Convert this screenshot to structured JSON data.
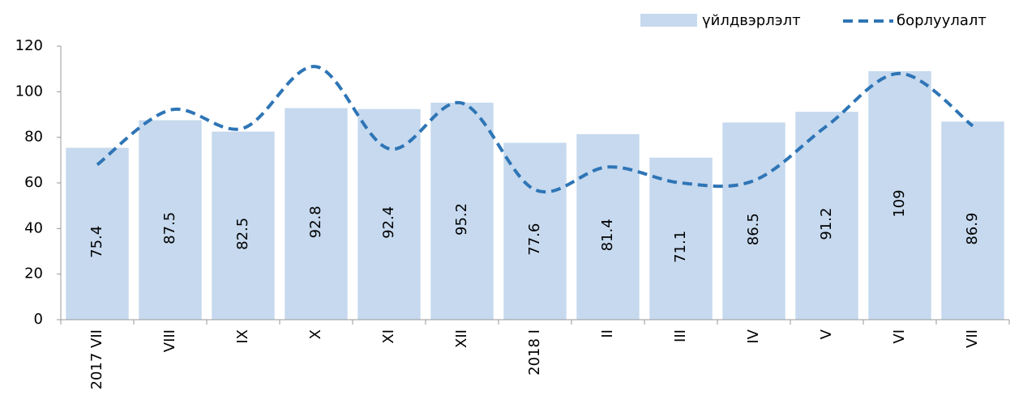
{
  "chart_data": {
    "type": "bar_line",
    "categories": [
      "2017 VII",
      "VIII",
      "IX",
      "X",
      "XI",
      "XII",
      "2018 I",
      "II",
      "III",
      "IV",
      "V",
      "VI",
      "VII"
    ],
    "series": [
      {
        "name": "үйлдвэрлэлт",
        "type": "bar",
        "color": "#c6d9ee",
        "values": [
          75.4,
          87.5,
          82.5,
          92.8,
          92.4,
          95.2,
          77.6,
          81.4,
          71.1,
          86.5,
          91.2,
          109,
          86.9
        ]
      },
      {
        "name": "борлуулалт",
        "type": "line",
        "color": "#2e75b6",
        "dashed": true,
        "smooth": true,
        "values": [
          68,
          92,
          84,
          111,
          75,
          95,
          57,
          67,
          60,
          61,
          85,
          108,
          85
        ]
      }
    ],
    "data_labels": true,
    "ylim": [
      0,
      120
    ],
    "yticks": [
      0,
      20,
      40,
      60,
      80,
      100,
      120
    ],
    "grid": false,
    "legend": "top-right"
  }
}
